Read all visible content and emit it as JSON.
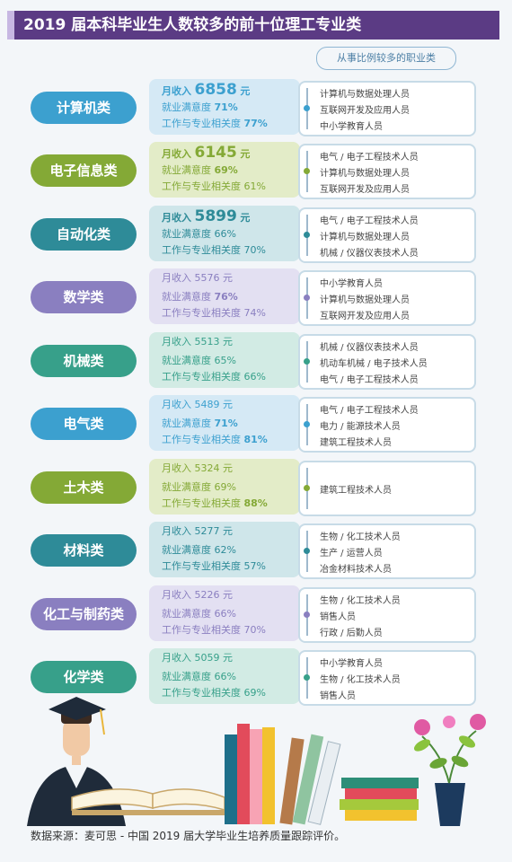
{
  "title": "2019 届本科毕业生人数较多的前十位理工专业类",
  "occ_header": "从事比例较多的职业类",
  "labels": {
    "income": "月收入",
    "sat": "就业满意度",
    "rel": "工作与专业相关度"
  },
  "colors": {
    "header_bg": "#5b3b84"
  },
  "rows": [
    {
      "major": "计算机类",
      "color": "#3ca0cf",
      "bg": "#d5e9f5",
      "income": "6858",
      "unit": "元",
      "sat": "71%",
      "rel": "77%",
      "occ": [
        "计算机与数据处理人员",
        "互联网开发及应用人员",
        "中小学教育人员"
      ]
    },
    {
      "major": "电子信息类",
      "color": "#84a936",
      "bg": "#e3ecc8",
      "income": "6145",
      "unit": "元",
      "sat": "69%",
      "rel": "61%",
      "occ": [
        "电气 / 电子工程技术人员",
        "计算机与数据处理人员",
        "互联网开发及应用人员"
      ]
    },
    {
      "major": "自动化类",
      "color": "#2e8b98",
      "bg": "#cfe6ea",
      "income": "5899",
      "unit": "元",
      "sat": "66%",
      "rel": "70%",
      "occ": [
        "电气 / 电子工程技术人员",
        "计算机与数据处理人员",
        "机械 / 仪器仪表技术人员"
      ]
    },
    {
      "major": "数学类",
      "color": "#8a7fc0",
      "bg": "#e3e0f2",
      "income": "5576",
      "unit": "元",
      "sat": "76%",
      "rel": "74%",
      "occ": [
        "中小学教育人员",
        "计算机与数据处理人员",
        "互联网开发及应用人员"
      ]
    },
    {
      "major": "机械类",
      "color": "#37a08a",
      "bg": "#d2ebe4",
      "income": "5513",
      "unit": "元",
      "sat": "65%",
      "rel": "66%",
      "occ": [
        "机械 / 仪器仪表技术人员",
        "机动车机械 / 电子技术人员",
        "电气 / 电子工程技术人员"
      ]
    },
    {
      "major": "电气类",
      "color": "#3ca0cf",
      "bg": "#d5e9f5",
      "income": "5489",
      "unit": "元",
      "sat": "71%",
      "rel": "81%",
      "occ": [
        "电气 / 电子工程技术人员",
        "电力 / 能源技术人员",
        "建筑工程技术人员"
      ]
    },
    {
      "major": "土木类",
      "color": "#84a936",
      "bg": "#e3ecc8",
      "income": "5324",
      "unit": "元",
      "sat": "69%",
      "rel": "88%",
      "occ": [
        "建筑工程技术人员"
      ]
    },
    {
      "major": "材料类",
      "color": "#2e8b98",
      "bg": "#cfe6ea",
      "income": "5277",
      "unit": "元",
      "sat": "62%",
      "rel": "57%",
      "occ": [
        "生物 / 化工技术人员",
        "生产 / 运营人员",
        "冶金材料技术人员"
      ]
    },
    {
      "major": "化工与制药类",
      "color": "#8a7fc0",
      "bg": "#e3e0f2",
      "income": "5226",
      "unit": "元",
      "sat": "66%",
      "rel": "70%",
      "occ": [
        "生物 / 化工技术人员",
        "销售人员",
        "行政 / 后勤人员"
      ]
    },
    {
      "major": "化学类",
      "color": "#37a08a",
      "bg": "#d2ebe4",
      "income": "5059",
      "unit": "元",
      "sat": "66%",
      "rel": "69%",
      "occ": [
        "中小学教育人员",
        "生物 / 化工技术人员",
        "销售人员"
      ]
    }
  ],
  "source": "数据来源：麦可思 - 中国 2019 届大学毕业生培养质量跟踪评价。"
}
